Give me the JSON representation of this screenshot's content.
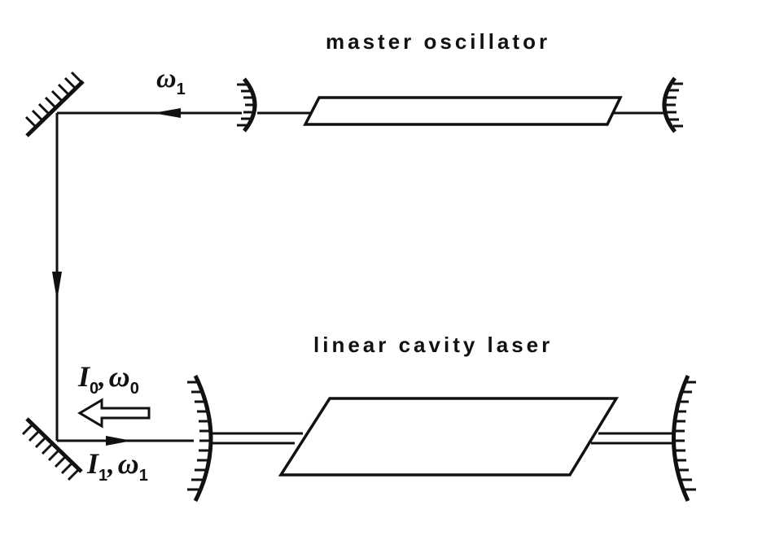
{
  "labels": {
    "master_oscillator": "master oscillator",
    "linear_cavity_laser": "linear cavity laser"
  },
  "beams": {
    "injected_symbol": "ω",
    "injected_subscript": "1",
    "reflected_intensity_symbol": "I",
    "reflected_intensity_subscript": "0",
    "reflected_frequency_symbol": "ω",
    "reflected_frequency_subscript": "0",
    "input_intensity_symbol": "I",
    "input_intensity_subscript": "1",
    "input_frequency_symbol": "ω",
    "input_frequency_subscript": "1",
    "separator": ","
  },
  "style": {
    "ink_color": "#111111",
    "background_color": "#ffffff"
  }
}
